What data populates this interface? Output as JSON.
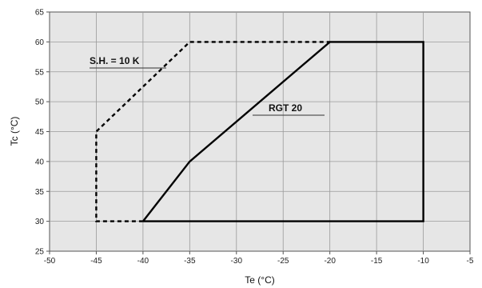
{
  "chart_data": {
    "type": "line",
    "xlabel": "Te (°C)",
    "ylabel": "Tc (°C)",
    "xlim": [
      -50,
      -5
    ],
    "ylim": [
      25,
      65
    ],
    "x_ticks": [
      "-50",
      "-45",
      "-40",
      "-35",
      "-30",
      "-25",
      "-20",
      "-15",
      "-10",
      "-5"
    ],
    "y_ticks": [
      "25",
      "30",
      "35",
      "40",
      "45",
      "50",
      "55",
      "60",
      "65"
    ],
    "grid": true,
    "background": "#e6e6e6",
    "series": [
      {
        "name": "RGT 20",
        "style": "solid",
        "color": "#000000",
        "points": [
          [
            -40,
            30
          ],
          [
            -35,
            40
          ],
          [
            -20,
            60
          ],
          [
            -10,
            60
          ],
          [
            -10,
            30
          ],
          [
            -40,
            30
          ]
        ]
      },
      {
        "name": "S.H. = 10 K",
        "style": "dashed",
        "color": "#000000",
        "points": [
          [
            -40,
            30
          ],
          [
            -45,
            30
          ],
          [
            -45,
            45
          ],
          [
            -35,
            60
          ],
          [
            -20,
            60
          ]
        ]
      }
    ],
    "annotations": [
      {
        "text": "S.H. = 10 K",
        "series": "S.H. = 10 K"
      },
      {
        "text": "RGT 20",
        "series": "RGT 20"
      }
    ]
  }
}
